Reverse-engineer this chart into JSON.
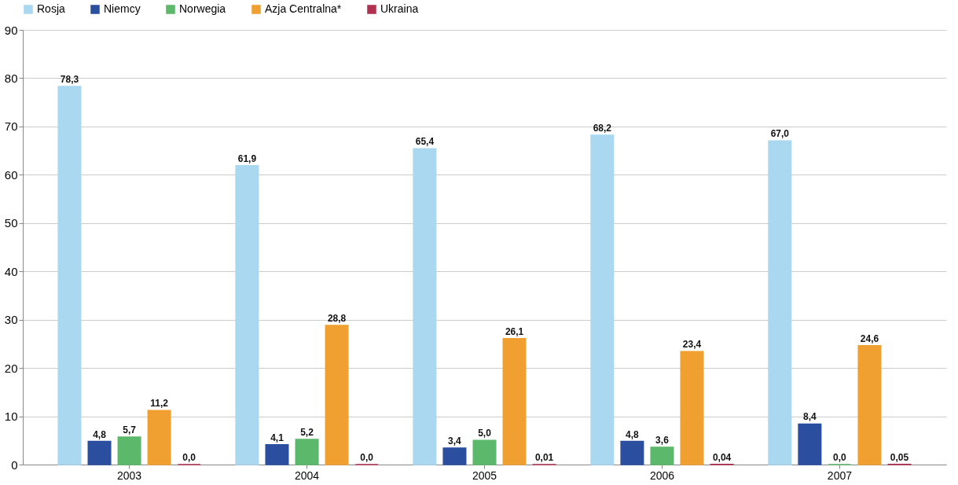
{
  "chart_data": {
    "type": "bar",
    "categories": [
      "2003",
      "2004",
      "2005",
      "2006",
      "2007"
    ],
    "series": [
      {
        "name": "Rosja",
        "color": "#a9d8f0",
        "values": [
          78.3,
          61.9,
          65.4,
          68.2,
          67.0
        ],
        "value_labels": [
          "78,3",
          "61,9",
          "65,4",
          "68,2",
          "67,0"
        ]
      },
      {
        "name": "Niemcy",
        "color": "#2b4f9e",
        "values": [
          4.8,
          4.1,
          3.4,
          4.8,
          8.4
        ],
        "value_labels": [
          "4,8",
          "4,1",
          "3,4",
          "4,8",
          "8,4"
        ]
      },
      {
        "name": "Norwegia",
        "color": "#5cb86a",
        "values": [
          5.7,
          5.2,
          5.0,
          3.6,
          0.0
        ],
        "value_labels": [
          "5,7",
          "5,2",
          "5,0",
          "3,6",
          "0,0"
        ]
      },
      {
        "name": "Azja Centralna*",
        "color": "#f0a030",
        "values": [
          11.2,
          28.8,
          26.1,
          23.4,
          24.6
        ],
        "value_labels": [
          "11,2",
          "28,8",
          "26,1",
          "23,4",
          "24,6"
        ]
      },
      {
        "name": "Ukraina",
        "color": "#b03050",
        "values": [
          0.0,
          0.0,
          0.01,
          0.04,
          0.05
        ],
        "value_labels": [
          "0,0",
          "0,0",
          "0,01",
          "0,04",
          "0,05"
        ]
      }
    ],
    "ylim": [
      0,
      90
    ],
    "yticks": [
      0,
      10,
      20,
      30,
      40,
      50,
      60,
      70,
      80,
      90
    ],
    "grid": "y",
    "legend": "top"
  }
}
